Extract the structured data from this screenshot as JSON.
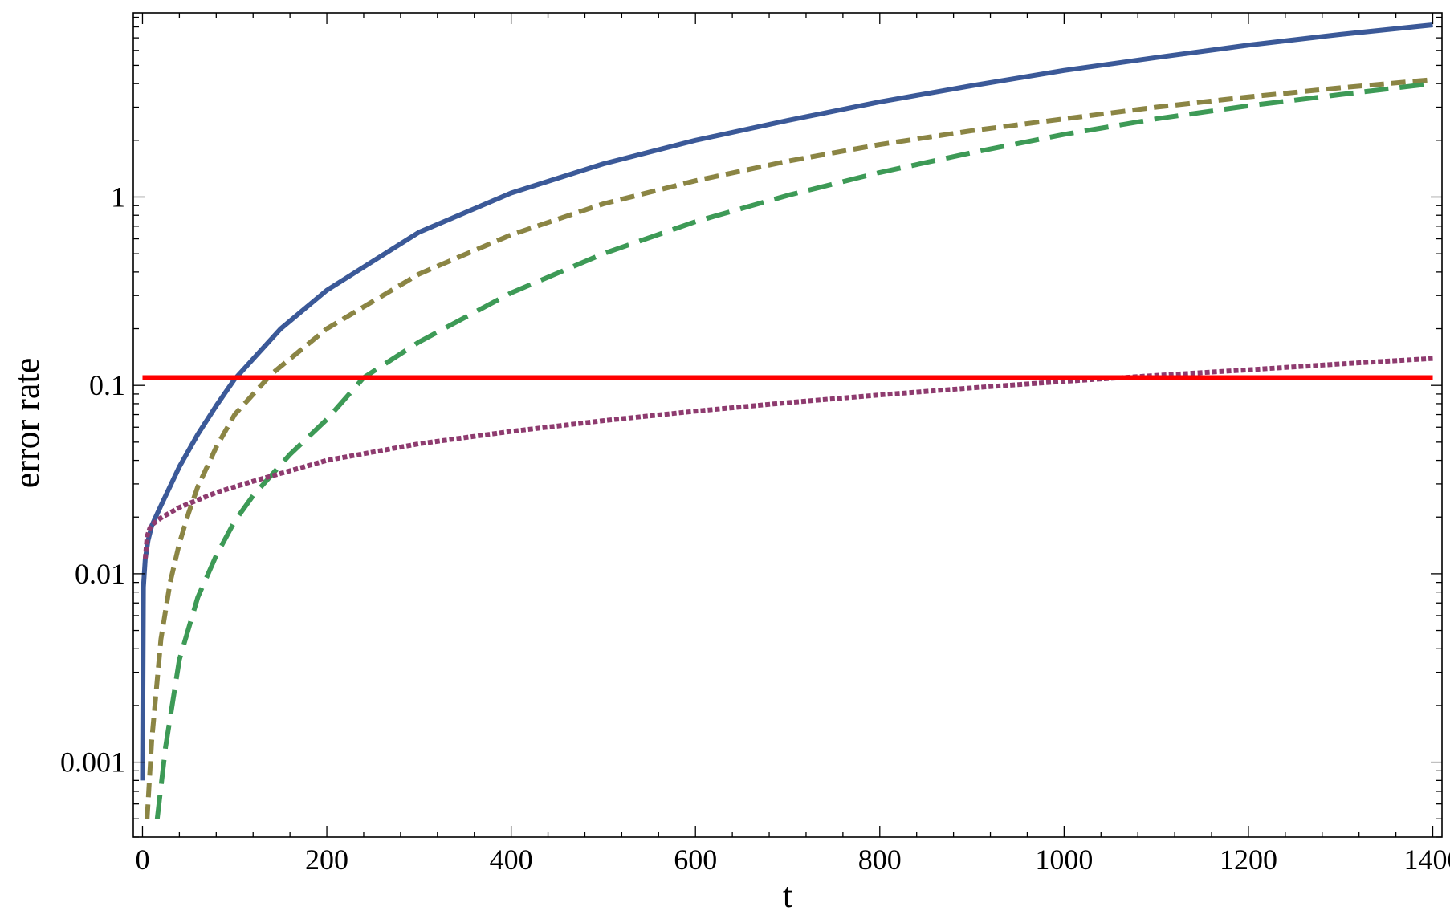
{
  "chart_data": {
    "type": "line",
    "title": "",
    "xlabel": "t",
    "ylabel": "error rate",
    "xlim": [
      -10,
      1410
    ],
    "ylim": [
      0.0004,
      9.5
    ],
    "yscale": "log",
    "grid": false,
    "legend": "none",
    "x_ticks": [
      {
        "value": 0,
        "label": "0"
      },
      {
        "value": 200,
        "label": "200"
      },
      {
        "value": 400,
        "label": "400"
      },
      {
        "value": 600,
        "label": "600"
      },
      {
        "value": 800,
        "label": "800"
      },
      {
        "value": 1000,
        "label": "1000"
      },
      {
        "value": 1200,
        "label": "1200"
      },
      {
        "value": 1400,
        "label": "1400"
      }
    ],
    "y_ticks": [
      {
        "value": 0.001,
        "label": "0.001"
      },
      {
        "value": 0.01,
        "label": "0.01"
      },
      {
        "value": 0.1,
        "label": "0.1"
      },
      {
        "value": 1,
        "label": "1"
      }
    ],
    "series": [
      {
        "color": "#3b5998",
        "style": "solid",
        "points": [
          [
            0,
            0.0008
          ],
          [
            1,
            0.0085
          ],
          [
            3,
            0.012
          ],
          [
            6,
            0.015
          ],
          [
            10,
            0.018
          ],
          [
            20,
            0.023
          ],
          [
            40,
            0.037
          ],
          [
            60,
            0.055
          ],
          [
            80,
            0.078
          ],
          [
            100,
            0.108
          ],
          [
            150,
            0.2
          ],
          [
            200,
            0.32
          ],
          [
            300,
            0.65
          ],
          [
            400,
            1.05
          ],
          [
            500,
            1.5
          ],
          [
            600,
            2.0
          ],
          [
            700,
            2.55
          ],
          [
            800,
            3.2
          ],
          [
            900,
            3.9
          ],
          [
            1000,
            4.7
          ],
          [
            1100,
            5.5
          ],
          [
            1200,
            6.4
          ],
          [
            1300,
            7.3
          ],
          [
            1400,
            8.2
          ]
        ]
      },
      {
        "color": "#8b8544",
        "style": "short-dash",
        "points": [
          [
            5,
            0.0005
          ],
          [
            10,
            0.0013
          ],
          [
            20,
            0.0045
          ],
          [
            30,
            0.009
          ],
          [
            40,
            0.0145
          ],
          [
            50,
            0.021
          ],
          [
            60,
            0.029
          ],
          [
            80,
            0.047
          ],
          [
            100,
            0.07
          ],
          [
            140,
            0.115
          ],
          [
            200,
            0.2
          ],
          [
            300,
            0.39
          ],
          [
            400,
            0.63
          ],
          [
            500,
            0.92
          ],
          [
            600,
            1.22
          ],
          [
            700,
            1.55
          ],
          [
            800,
            1.9
          ],
          [
            900,
            2.25
          ],
          [
            1000,
            2.6
          ],
          [
            1100,
            3.0
          ],
          [
            1200,
            3.4
          ],
          [
            1300,
            3.8
          ],
          [
            1400,
            4.2
          ]
        ]
      },
      {
        "color": "#3d9a56",
        "style": "long-dash",
        "points": [
          [
            16,
            0.0005
          ],
          [
            25,
            0.0012
          ],
          [
            40,
            0.0035
          ],
          [
            60,
            0.0075
          ],
          [
            80,
            0.0125
          ],
          [
            100,
            0.019
          ],
          [
            120,
            0.026
          ],
          [
            160,
            0.043
          ],
          [
            200,
            0.066
          ],
          [
            240,
            0.11
          ],
          [
            300,
            0.17
          ],
          [
            400,
            0.31
          ],
          [
            500,
            0.5
          ],
          [
            600,
            0.74
          ],
          [
            700,
            1.02
          ],
          [
            800,
            1.35
          ],
          [
            900,
            1.72
          ],
          [
            1000,
            2.15
          ],
          [
            1100,
            2.6
          ],
          [
            1200,
            3.05
          ],
          [
            1300,
            3.5
          ],
          [
            1400,
            4.0
          ]
        ]
      },
      {
        "color": "#8e3b6f",
        "style": "dotted",
        "points": [
          [
            3,
            0.012
          ],
          [
            5,
            0.0158
          ],
          [
            8,
            0.0175
          ],
          [
            12,
            0.0185
          ],
          [
            20,
            0.0198
          ],
          [
            40,
            0.0225
          ],
          [
            80,
            0.027
          ],
          [
            120,
            0.031
          ],
          [
            200,
            0.04
          ],
          [
            300,
            0.049
          ],
          [
            400,
            0.057
          ],
          [
            500,
            0.065
          ],
          [
            600,
            0.073
          ],
          [
            700,
            0.081
          ],
          [
            800,
            0.089
          ],
          [
            900,
            0.097
          ],
          [
            1000,
            0.105
          ],
          [
            1100,
            0.113
          ],
          [
            1200,
            0.121
          ],
          [
            1300,
            0.13
          ],
          [
            1400,
            0.139
          ]
        ]
      },
      {
        "color": "#ff0000",
        "style": "solid",
        "points": [
          [
            0,
            0.11
          ],
          [
            1400,
            0.11
          ]
        ]
      }
    ]
  }
}
